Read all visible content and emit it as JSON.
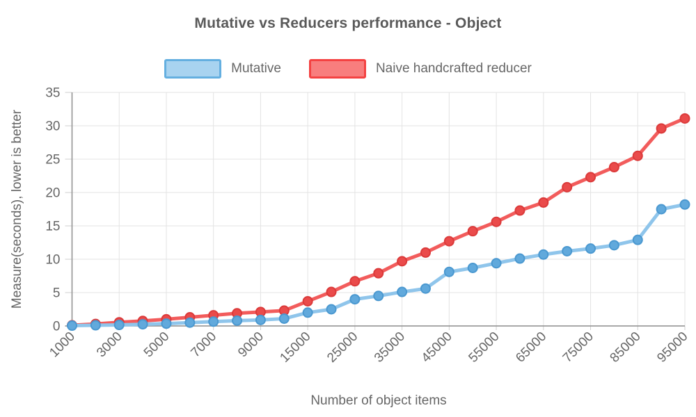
{
  "title": "Mutative vs Reducers performance - Object",
  "legend": {
    "items": [
      {
        "label": "Mutative",
        "fill": "#A8D3F0",
        "border": "#64AFE0"
      },
      {
        "label": "Naive handcrafted reducer",
        "fill": "#F87E7E",
        "border": "#F44242"
      }
    ]
  },
  "colors": {
    "title": "#595959",
    "text": "#666666",
    "grid": "#E3E3E3",
    "tick": "#CFCFCF",
    "axis": "#8C8C8C",
    "background": "#FFFFFF"
  },
  "chart_data": {
    "type": "line",
    "title": "Mutative vs Reducers performance - Object",
    "xlabel": "Number of object items",
    "ylabel": "Measure(seconds), lower is better",
    "x": [
      1000,
      2000,
      3000,
      4000,
      5000,
      6000,
      7000,
      8000,
      9000,
      10000,
      15000,
      20000,
      25000,
      30000,
      35000,
      40000,
      45000,
      50000,
      55000,
      60000,
      65000,
      70000,
      75000,
      80000,
      85000,
      90000,
      95000
    ],
    "x_labeled_every": 2,
    "x_tick_labels": [
      "1000",
      "3000",
      "5000",
      "7000",
      "9000",
      "15000",
      "25000",
      "35000",
      "45000",
      "55000",
      "65000",
      "75000",
      "85000",
      "95000"
    ],
    "y_ticks": [
      0,
      5,
      10,
      15,
      20,
      25,
      30,
      35
    ],
    "ylim": [
      0,
      35
    ],
    "grid": true,
    "legend_position": "top",
    "x_tick_rotation_deg": -45,
    "series": [
      {
        "name": "Mutative",
        "values": [
          0.05,
          0.1,
          0.15,
          0.25,
          0.35,
          0.5,
          0.65,
          0.8,
          0.9,
          1.1,
          2.0,
          2.5,
          4.0,
          4.5,
          5.1,
          5.6,
          8.1,
          8.7,
          9.4,
          10.1,
          10.7,
          11.2,
          11.6,
          12.1,
          12.9,
          17.5,
          18.2
        ],
        "line_color": "#8FC5EB",
        "point_fill": "#61A9DC",
        "point_stroke": "#4A98D0"
      },
      {
        "name": "Naive handcrafted reducer",
        "values": [
          0.1,
          0.3,
          0.55,
          0.75,
          1.0,
          1.3,
          1.6,
          1.9,
          2.1,
          2.3,
          3.7,
          5.1,
          6.7,
          7.9,
          9.7,
          11.0,
          12.7,
          14.2,
          15.6,
          17.3,
          18.5,
          20.8,
          22.3,
          23.8,
          25.5,
          29.6,
          31.1
        ],
        "line_color": "#F25C5C",
        "point_fill": "#EA4B4B",
        "point_stroke": "#DB3A3A"
      }
    ]
  }
}
